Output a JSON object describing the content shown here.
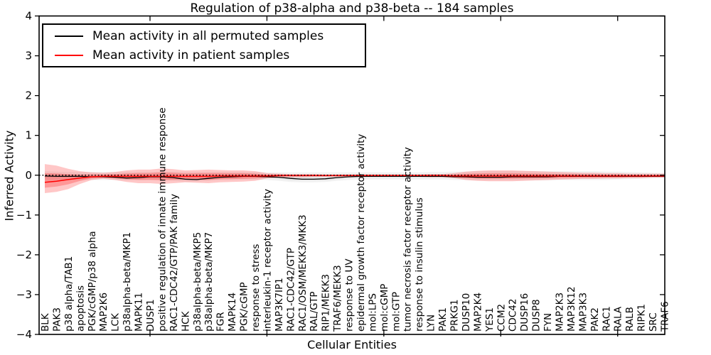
{
  "chart_data": {
    "type": "line",
    "title": "Regulation of p38-alpha and p38-beta -- 184 samples",
    "xlabel": "Cellular Entities",
    "ylabel": "Inferred Activity",
    "ylim": [
      -4,
      4
    ],
    "yticks": [
      4,
      3,
      2,
      1,
      0,
      -1,
      -2,
      -3,
      -4
    ],
    "x_major_tick_indices": [
      9,
      19,
      29,
      39,
      49
    ],
    "grid": false,
    "legend_position": "upper left",
    "zero_line": {
      "y": 0,
      "style": "dotted",
      "color": "#000000"
    },
    "categories": [
      "BLK",
      "PAK3",
      "p38 alpha/TAB1",
      "apoptosis",
      "PGK/cGMP/p38 alpha",
      "MAP2K6",
      "LCK",
      "p38alpha-beta/MKP1",
      "MAPK11",
      "DUSP1",
      "positive regulation of innate immune response",
      "RAC1-CDC42/GTP/PAK family",
      "HCK",
      "p38alpha-beta/MKP5",
      "p38alpha-beta/MKP7",
      "FGR",
      "MAPK14",
      "PGK/cGMP",
      "response to stress",
      "interleukin-1 receptor activity",
      "MAP3K7IP1",
      "RAC1-CDC42/GTP",
      "RAC1/OSM/MEKK3/MKK3",
      "RAL/GTP",
      "RIP1/MEKK3",
      "TRAF6/MEKK3",
      "response to UV",
      "epidermal growth factor receptor activity",
      "mol:LPS",
      "mol:cGMP",
      "mol:GTP",
      "tumor necrosis factor receptor activity",
      "response to insulin stimulus",
      "LYN",
      "PAK1",
      "PRKG1",
      "DUSP10",
      "MAP2K4",
      "YES1",
      "CCM2",
      "CDC42",
      "DUSP16",
      "DUSP8",
      "FYN",
      "MAP2K3",
      "MAP3K12",
      "MAP3K3",
      "PAK2",
      "RAC1",
      "RALA",
      "RALB",
      "RIPK1",
      "SRC",
      "TRAF6"
    ],
    "series": [
      {
        "name": "Mean activity in all permuted samples",
        "color": "#000000",
        "band_color": "#808080",
        "values": [
          -0.02,
          -0.03,
          -0.03,
          -0.03,
          -0.04,
          -0.04,
          -0.05,
          -0.07,
          -0.06,
          -0.04,
          -0.04,
          -0.06,
          -0.1,
          -0.11,
          -0.08,
          -0.05,
          -0.04,
          -0.03,
          -0.03,
          -0.04,
          -0.05,
          -0.08,
          -0.1,
          -0.1,
          -0.09,
          -0.06,
          -0.04,
          -0.03,
          -0.03,
          -0.03,
          -0.03,
          -0.03,
          -0.03,
          -0.03,
          -0.03,
          -0.04,
          -0.04,
          -0.05,
          -0.05,
          -0.05,
          -0.04,
          -0.04,
          -0.04,
          -0.04,
          -0.03,
          -0.03,
          -0.03,
          -0.03,
          -0.03,
          -0.03,
          -0.03,
          -0.03,
          -0.03,
          -0.03
        ],
        "band_hi": [
          0.1,
          0.09,
          0.08,
          0.08,
          0.08,
          0.08,
          0.08,
          0.08,
          0.08,
          0.08,
          0.09,
          0.09,
          0.08,
          0.08,
          0.08,
          0.08,
          0.08,
          0.08,
          0.08,
          0.07,
          0.07,
          0.07,
          0.07,
          0.07,
          0.07,
          0.07,
          0.07,
          0.07,
          0.07,
          0.07,
          0.07,
          0.07,
          0.07,
          0.08,
          0.08,
          0.09,
          0.09,
          0.1,
          0.1,
          0.1,
          0.1,
          0.1,
          0.1,
          0.1,
          0.1,
          0.1,
          0.1,
          0.1,
          0.09,
          0.09,
          0.08,
          0.07,
          0.06,
          0.05
        ],
        "band_lo": [
          -0.14,
          -0.13,
          -0.12,
          -0.12,
          -0.12,
          -0.12,
          -0.12,
          -0.13,
          -0.13,
          -0.12,
          -0.12,
          -0.14,
          -0.16,
          -0.16,
          -0.14,
          -0.12,
          -0.12,
          -0.11,
          -0.11,
          -0.12,
          -0.14,
          -0.17,
          -0.18,
          -0.18,
          -0.17,
          -0.14,
          -0.12,
          -0.11,
          -0.11,
          -0.11,
          -0.11,
          -0.11,
          -0.11,
          -0.11,
          -0.11,
          -0.12,
          -0.12,
          -0.13,
          -0.13,
          -0.13,
          -0.13,
          -0.13,
          -0.13,
          -0.13,
          -0.12,
          -0.12,
          -0.12,
          -0.12,
          -0.12,
          -0.11,
          -0.1,
          -0.09,
          -0.08,
          -0.07
        ]
      },
      {
        "name": "Mean activity in patient samples",
        "color": "#ff0000",
        "band_color": "#ff0000",
        "values": [
          -0.18,
          -0.15,
          -0.11,
          -0.07,
          -0.04,
          -0.03,
          -0.03,
          -0.03,
          -0.03,
          -0.03,
          -0.03,
          -0.03,
          -0.03,
          -0.03,
          -0.03,
          -0.02,
          -0.02,
          -0.02,
          -0.02,
          -0.02,
          -0.01,
          -0.01,
          -0.01,
          -0.01,
          -0.01,
          -0.01,
          -0.01,
          -0.01,
          -0.01,
          -0.01,
          -0.01,
          -0.01,
          -0.01,
          -0.01,
          -0.01,
          -0.02,
          -0.02,
          -0.02,
          -0.02,
          -0.02,
          -0.02,
          -0.02,
          -0.02,
          -0.02,
          -0.02,
          -0.02,
          -0.02,
          -0.02,
          -0.02,
          -0.02,
          -0.02,
          -0.02,
          -0.02,
          -0.02
        ],
        "band_hi": [
          0.28,
          0.24,
          0.16,
          0.1,
          0.07,
          0.06,
          0.08,
          0.12,
          0.14,
          0.14,
          0.17,
          0.15,
          0.12,
          0.13,
          0.14,
          0.13,
          0.12,
          0.12,
          0.1,
          0.05,
          0.04,
          0.03,
          0.03,
          0.03,
          0.02,
          0.02,
          0.02,
          0.02,
          0.02,
          0.02,
          0.02,
          0.02,
          0.02,
          0.03,
          0.03,
          0.05,
          0.09,
          0.11,
          0.12,
          0.12,
          0.12,
          0.11,
          0.1,
          0.09,
          0.08,
          0.07,
          0.06,
          0.06,
          0.05,
          0.05,
          0.04,
          0.04,
          0.04,
          0.04
        ],
        "band_lo": [
          -0.45,
          -0.42,
          -0.35,
          -0.22,
          -0.12,
          -0.09,
          -0.12,
          -0.17,
          -0.2,
          -0.2,
          -0.22,
          -0.2,
          -0.18,
          -0.19,
          -0.2,
          -0.18,
          -0.17,
          -0.16,
          -0.14,
          -0.08,
          -0.06,
          -0.05,
          -0.05,
          -0.04,
          -0.04,
          -0.04,
          -0.04,
          -0.04,
          -0.04,
          -0.04,
          -0.04,
          -0.04,
          -0.04,
          -0.05,
          -0.05,
          -0.07,
          -0.12,
          -0.14,
          -0.15,
          -0.15,
          -0.15,
          -0.14,
          -0.13,
          -0.12,
          -0.11,
          -0.1,
          -0.09,
          -0.09,
          -0.08,
          -0.08,
          -0.07,
          -0.07,
          -0.06,
          -0.06
        ]
      }
    ]
  },
  "colors": {
    "frame": "#000000",
    "background": "#ffffff",
    "permuted_line": "#000000",
    "patient_line": "#ff0000"
  }
}
